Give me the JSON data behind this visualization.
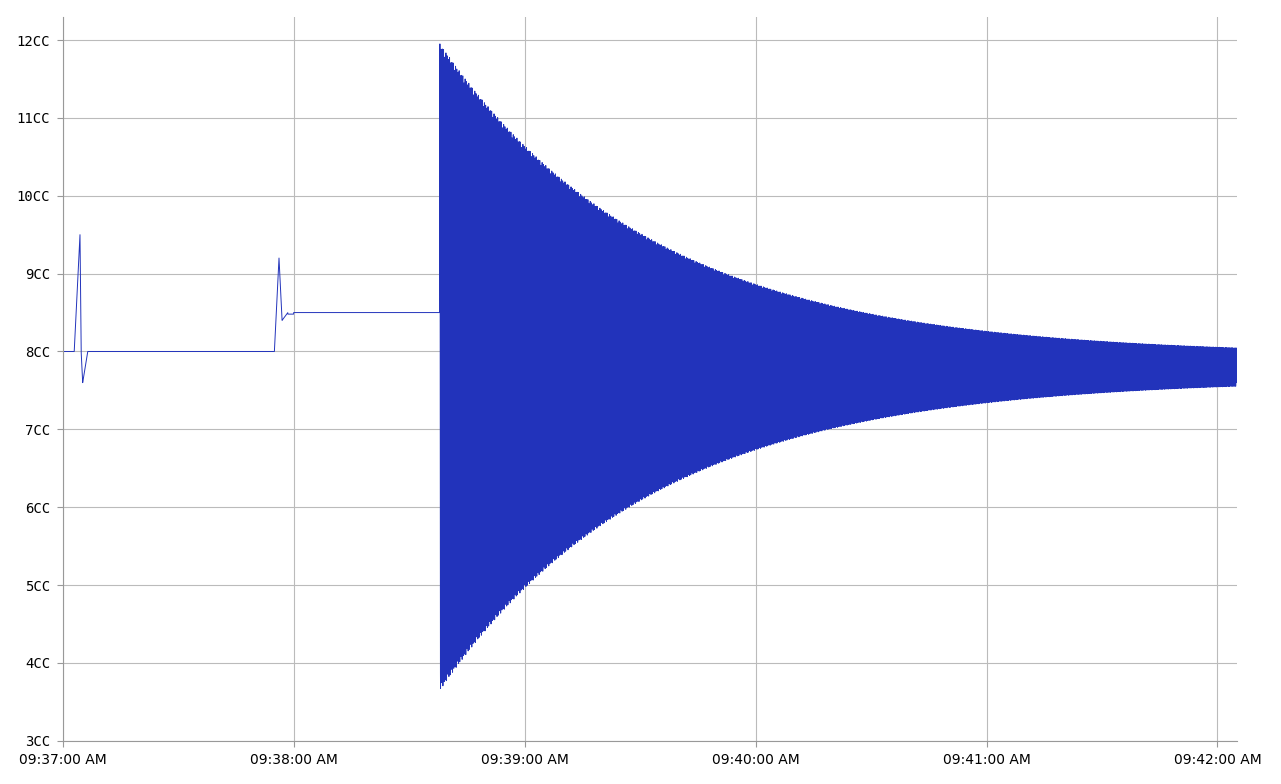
{
  "ylim": [
    300,
    1230
  ],
  "yticks": [
    300,
    400,
    500,
    600,
    700,
    800,
    900,
    1000,
    1100,
    1200
  ],
  "ytick_labels": [
    "3CC",
    "4CC",
    "5CC",
    "6CC",
    "7CC",
    "8CC",
    "9CC",
    "10CC",
    "11CC",
    "12CC"
  ],
  "xtick_labels": [
    "09:37:00 AM",
    "09:38:00 AM",
    "09:39:00 AM",
    "09:40:00 AM",
    "09:41:00 AM",
    "09:42:00 AM"
  ],
  "xtick_positions": [
    0,
    60,
    120,
    180,
    240,
    300
  ],
  "xlim": [
    0,
    305
  ],
  "line_color": "#2233bb",
  "background_color": "#ffffff",
  "grid_color": "#bbbbbb",
  "figsize": [
    12.81,
    7.84
  ],
  "dpi": 100,
  "base_level": 800,
  "pre_surge_level": 850,
  "settle_level": 780,
  "surge_start": 98.0,
  "surge_peak": 1190,
  "surge_trough": 320,
  "surge_freq_hz": 3.2,
  "surge_decay": 0.018,
  "residual_amp": 15
}
